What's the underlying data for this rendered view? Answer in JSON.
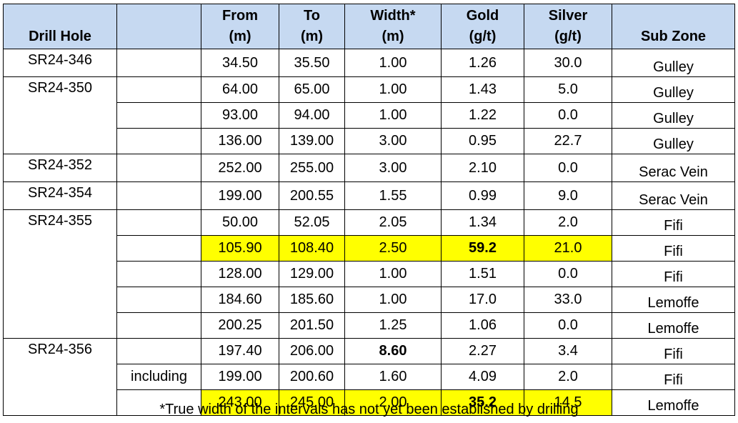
{
  "table": {
    "columns": [
      [
        "Drill Hole"
      ],
      [],
      [
        "From",
        "(m)"
      ],
      [
        "To",
        "(m)"
      ],
      [
        "Width*",
        "(m)"
      ],
      [
        "Gold",
        "(g/t)"
      ],
      [
        "Silver",
        "(g/t)"
      ],
      [
        "Sub Zone"
      ]
    ],
    "fields": [
      "from",
      "to",
      "width",
      "gold",
      "silver",
      "zone"
    ],
    "highlight_color": "#ffff00",
    "highlight_fields": [
      "from",
      "to",
      "width",
      "gold",
      "silver"
    ],
    "holes": [
      {
        "name": "SR24-346",
        "intervals": [
          {
            "from": "34.50",
            "to": "35.50",
            "width": "1.00",
            "gold": "1.26",
            "silver": "30.0",
            "zone": "Gulley"
          }
        ]
      },
      {
        "name": "SR24-350",
        "intervals": [
          {
            "from": "64.00",
            "to": "65.00",
            "width": "1.00",
            "gold": "1.43",
            "silver": "5.0",
            "zone": "Gulley"
          },
          {
            "from": "93.00",
            "to": "94.00",
            "width": "1.00",
            "gold": "1.22",
            "silver": "0.0",
            "zone": "Gulley"
          },
          {
            "from": "136.00",
            "to": "139.00",
            "width": "3.00",
            "gold": "0.95",
            "silver": "22.7",
            "zone": "Gulley"
          }
        ]
      },
      {
        "name": "SR24-352",
        "intervals": [
          {
            "from": "252.00",
            "to": "255.00",
            "width": "3.00",
            "gold": "2.10",
            "silver": "0.0",
            "zone": "Serac Vein"
          }
        ]
      },
      {
        "name": "SR24-354",
        "intervals": [
          {
            "from": "199.00",
            "to": "200.55",
            "width": "1.55",
            "gold": "0.99",
            "silver": "9.0",
            "zone": "Serac Vein"
          }
        ]
      },
      {
        "name": "SR24-355",
        "intervals": [
          {
            "from": "50.00",
            "to": "52.05",
            "width": "2.05",
            "gold": "1.34",
            "silver": "2.0",
            "zone": "Fifi"
          },
          {
            "from": "105.90",
            "to": "108.40",
            "width": "2.50",
            "gold": "59.2",
            "silver": "21.0",
            "zone": "Fifi",
            "highlight": true,
            "bold": [
              "gold"
            ]
          },
          {
            "from": "128.00",
            "to": "129.00",
            "width": "1.00",
            "gold": "1.51",
            "silver": "0.0",
            "zone": "Fifi"
          },
          {
            "from": "184.60",
            "to": "185.60",
            "width": "1.00",
            "gold": "17.0",
            "silver": "33.0",
            "zone": "Lemoffe"
          },
          {
            "from": "200.25",
            "to": "201.50",
            "width": "1.25",
            "gold": "1.06",
            "silver": "0.0",
            "zone": "Lemoffe"
          }
        ]
      },
      {
        "name": "SR24-356",
        "intervals": [
          {
            "from": "197.40",
            "to": "206.00",
            "width": "8.60",
            "gold": "2.27",
            "silver": "3.4",
            "zone": "Fifi",
            "bold": [
              "width"
            ]
          },
          {
            "note": "including",
            "from": "199.00",
            "to": "200.60",
            "width": "1.60",
            "gold": "4.09",
            "silver": "2.0",
            "zone": "Fifi"
          },
          {
            "from": "243.00",
            "to": "245.00",
            "width": "2.00",
            "gold": "35.2",
            "silver": "14.5",
            "zone": "Lemoffe",
            "highlight": true,
            "bold": [
              "gold"
            ]
          }
        ]
      }
    ],
    "footnote": "*True width of the intervals has not yet been established by drilling"
  }
}
